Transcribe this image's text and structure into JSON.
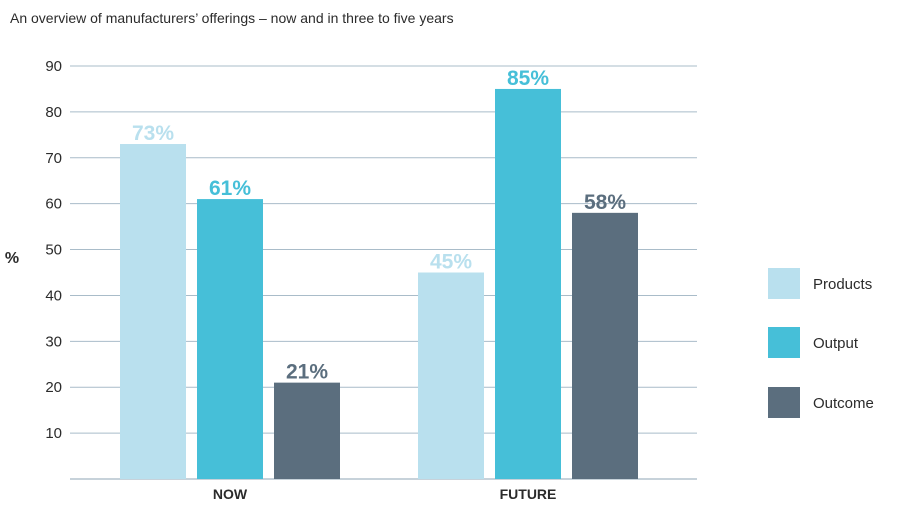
{
  "chart_data": {
    "type": "bar",
    "title": "An overview of manufacturers’ offerings – now and in three to five years",
    "ylabel": "%",
    "xlabel": "",
    "ylim": [
      0,
      90
    ],
    "yticks": [
      10,
      20,
      30,
      40,
      50,
      60,
      70,
      80,
      90
    ],
    "grid": true,
    "legend_position": "right",
    "categories": [
      "NOW",
      "FUTURE"
    ],
    "series": [
      {
        "name": "Products",
        "color": "#b9e0ee",
        "values": [
          73,
          45
        ],
        "labels": [
          "73%",
          "45%"
        ]
      },
      {
        "name": "Output",
        "color": "#46bfd8",
        "values": [
          61,
          85
        ],
        "labels": [
          "61%",
          "85%"
        ]
      },
      {
        "name": "Outcome",
        "color": "#5b6e7e",
        "values": [
          21,
          58
        ],
        "labels": [
          "21%",
          "58%"
        ]
      }
    ]
  }
}
